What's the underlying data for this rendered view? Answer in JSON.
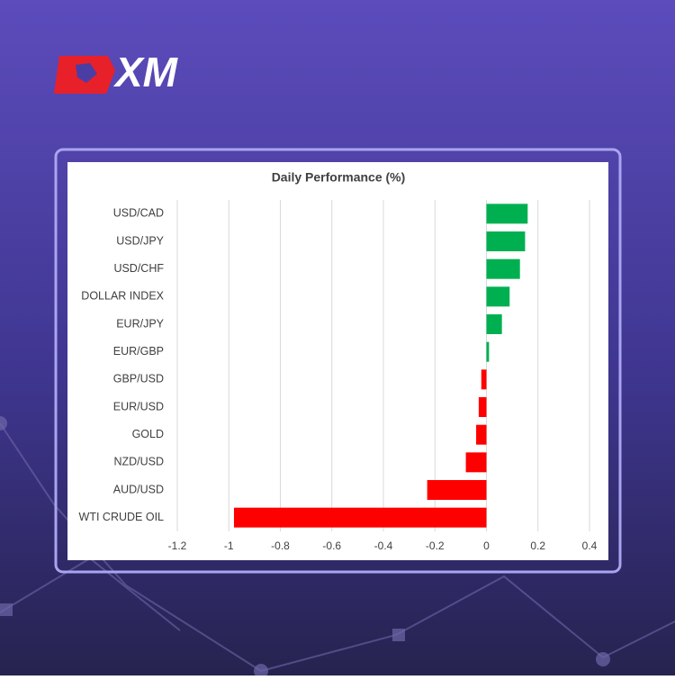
{
  "logo": "XM",
  "chart_data": {
    "type": "bar",
    "orientation": "horizontal",
    "title": "Daily Performance (%)",
    "categories": [
      "USD/CAD",
      "USD/JPY",
      "USD/CHF",
      "DOLLAR INDEX",
      "EUR/JPY",
      "EUR/GBP",
      "GBP/USD",
      "EUR/USD",
      "GOLD",
      "NZD/USD",
      "AUD/USD",
      "WTI CRUDE OIL"
    ],
    "values": [
      0.16,
      0.15,
      0.13,
      0.09,
      0.06,
      0.01,
      -0.02,
      -0.03,
      -0.04,
      -0.08,
      -0.23,
      -0.98
    ],
    "positive_color": "#00b050",
    "negative_color": "#ff0000",
    "xlim": [
      -1.2,
      0.4
    ],
    "xticks": [
      -1.2,
      -1,
      -0.8,
      -0.6,
      -0.4,
      -0.2,
      0,
      0.2,
      0.4
    ],
    "grid": true
  }
}
